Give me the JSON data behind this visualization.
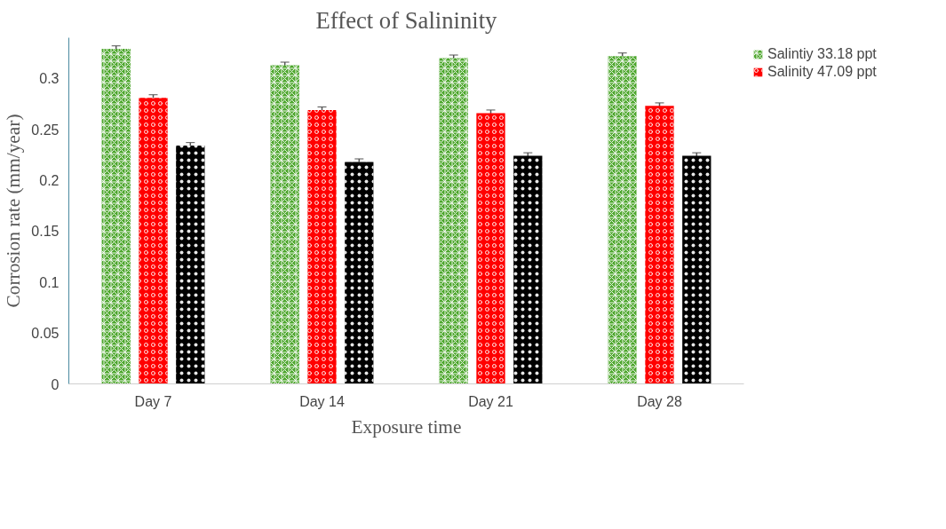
{
  "chart_data": {
    "type": "bar",
    "title": "Effect of Salininity",
    "xlabel": "Exposure time",
    "ylabel": "Corrosion rate (mm/year)",
    "categories": [
      "Day 7",
      "Day 14",
      "Day 21",
      "Day 28"
    ],
    "series": [
      {
        "name": "Salintiy 33.18 ppt",
        "color": "#4ea72e",
        "values": [
          0.329,
          0.313,
          0.32,
          0.322
        ],
        "errors": [
          0.003,
          0.003,
          0.003,
          0.003
        ]
      },
      {
        "name": "Salinity 47.09 ppt",
        "color": "#ff0000",
        "values": [
          0.281,
          0.269,
          0.266,
          0.273
        ],
        "errors": [
          0.003,
          0.003,
          0.003,
          0.003
        ]
      },
      {
        "color": "#000000",
        "values": [
          0.234,
          0.218,
          0.224,
          0.224
        ],
        "errors": [
          0.003,
          0.003,
          0.003,
          0.003
        ]
      }
    ],
    "ylim": [
      0,
      0.34
    ],
    "yticks": [
      0,
      0.05,
      0.1,
      0.15,
      0.2,
      0.25,
      0.3
    ],
    "grid": false,
    "legend": "top right"
  }
}
